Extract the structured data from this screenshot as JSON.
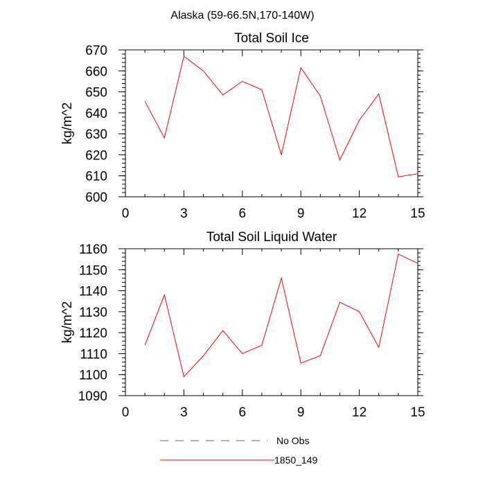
{
  "page": {
    "supertitle": "Alaska (59-66.5N,170-140W)"
  },
  "chart_data": [
    {
      "type": "line",
      "title": "Total Soil Ice",
      "xlabel": "",
      "ylabel": "kg/m^2",
      "xlim": [
        0,
        15
      ],
      "ylim": [
        600,
        670
      ],
      "xticks": [
        0,
        3,
        6,
        9,
        12,
        15
      ],
      "yticks": [
        600,
        610,
        620,
        630,
        640,
        650,
        660,
        670
      ],
      "series": [
        {
          "name": "1850_149",
          "color": "#ff0000",
          "x": [
            1,
            2,
            3,
            4,
            5,
            6,
            7,
            8,
            9,
            10,
            11,
            12,
            13,
            14,
            15
          ],
          "values": [
            645.5,
            628,
            667,
            660,
            648.5,
            655,
            651,
            620,
            661.5,
            648,
            617.5,
            636.5,
            649,
            609.5,
            611
          ]
        }
      ]
    },
    {
      "type": "line",
      "title": "Total Soil Liquid Water",
      "xlabel": "",
      "ylabel": "kg/m^2",
      "xlim": [
        0,
        15
      ],
      "ylim": [
        1090,
        1160
      ],
      "xticks": [
        0,
        3,
        6,
        9,
        12,
        15
      ],
      "yticks": [
        1090,
        1100,
        1110,
        1120,
        1130,
        1140,
        1150,
        1160
      ],
      "series": [
        {
          "name": "1850_149",
          "color": "#ff0000",
          "x": [
            1,
            2,
            3,
            4,
            5,
            6,
            7,
            8,
            9,
            10,
            11,
            12,
            13,
            14,
            15
          ],
          "values": [
            1114,
            1138,
            1099,
            1109,
            1121,
            1110,
            1114,
            1146,
            1105.5,
            1109,
            1134.5,
            1130,
            1113,
            1157.5,
            1153
          ]
        }
      ]
    }
  ],
  "legend": {
    "placement": "bottom-center",
    "items": [
      {
        "label": "No Obs",
        "style": "dashed",
        "color": "#5b5bb0"
      },
      {
        "label": "1850_149",
        "style": "solid",
        "color": "#ff0000"
      }
    ]
  }
}
